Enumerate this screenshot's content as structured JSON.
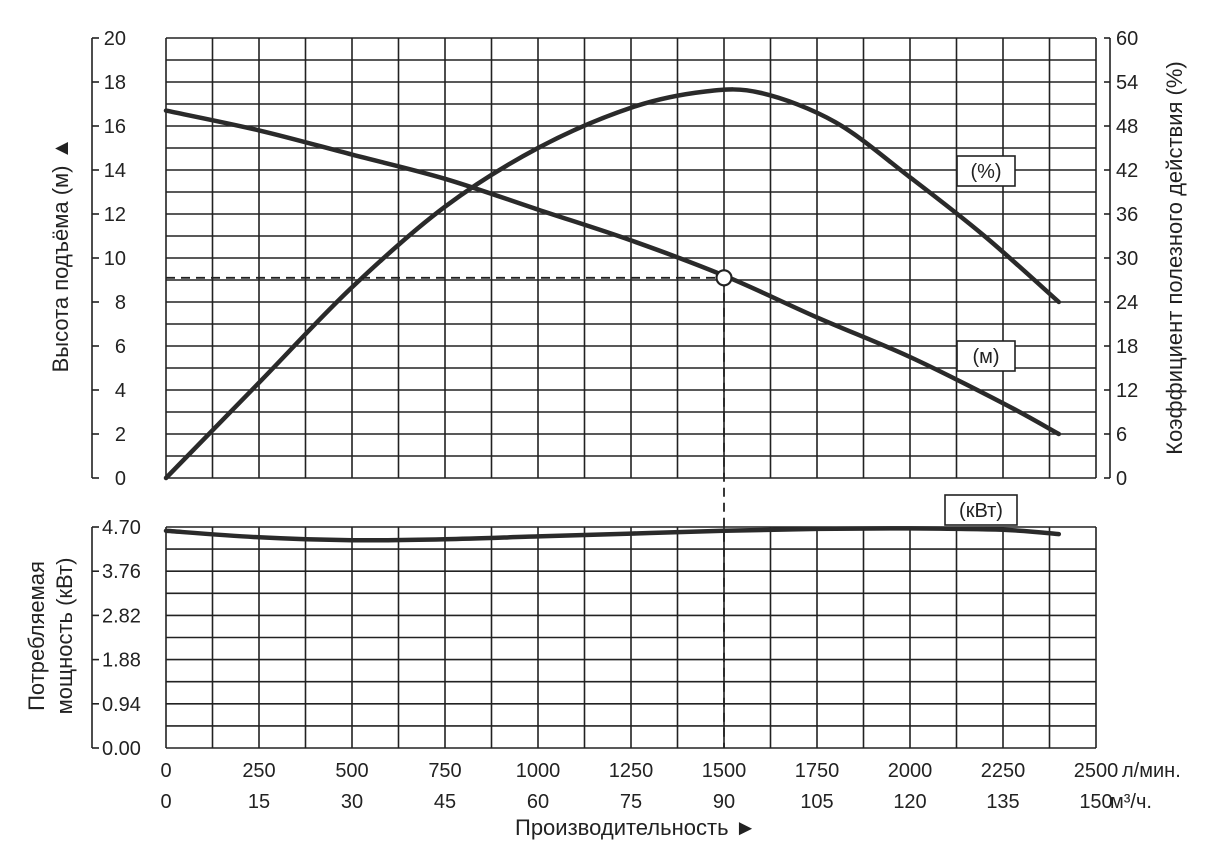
{
  "chart_data": {
    "type": "line",
    "x": {
      "label": "Производительность ►",
      "flow_lpm_ticks": [
        0,
        250,
        500,
        750,
        1000,
        1250,
        1500,
        1750,
        2000,
        2250,
        2500
      ],
      "flow_lpm_unit": "л/мин.",
      "flow_m3h_ticks": [
        0,
        15,
        30,
        45,
        60,
        75,
        90,
        105,
        120,
        135,
        150
      ],
      "flow_m3h_unit": "м³/ч.",
      "xlim": [
        0,
        2500
      ]
    },
    "head_axis": {
      "label": "Высота подъёма (м) ▲",
      "ticks": [
        0,
        2,
        4,
        6,
        8,
        10,
        12,
        14,
        16,
        18,
        20
      ],
      "ylim": [
        0,
        20
      ]
    },
    "efficiency_axis": {
      "label": "Коэффициент полезного действия (%)",
      "ticks": [
        0,
        6,
        12,
        18,
        24,
        30,
        36,
        42,
        48,
        54,
        60
      ],
      "ylim": [
        0,
        60
      ]
    },
    "power_axis": {
      "label_line1": "Потребляемая",
      "label_line2": "мощность (кВт)",
      "ticks": [
        "0.00",
        "0.94",
        "1.88",
        "2.82",
        "3.76",
        "4.70"
      ],
      "ylim": [
        0,
        4.7
      ]
    },
    "series": [
      {
        "name": "(м)",
        "axis": "head",
        "x": [
          0,
          250,
          500,
          750,
          1000,
          1250,
          1500,
          1750,
          2000,
          2250,
          2400
        ],
        "values": [
          16.7,
          15.8,
          14.7,
          13.6,
          12.2,
          10.8,
          9.2,
          7.3,
          5.5,
          3.4,
          2.0
        ]
      },
      {
        "name": "(%)",
        "axis": "efficiency",
        "x": [
          0,
          250,
          500,
          750,
          1000,
          1250,
          1450,
          1600,
          1800,
          2000,
          2200,
          2400
        ],
        "values": [
          0,
          13,
          26,
          37,
          45,
          50.5,
          52.7,
          52.5,
          48.5,
          41,
          33,
          24
        ]
      },
      {
        "name": "(кВт)",
        "axis": "power",
        "x": [
          0,
          250,
          500,
          750,
          1000,
          1250,
          1500,
          1750,
          2000,
          2250,
          2400
        ],
        "values": [
          4.62,
          4.48,
          4.42,
          4.44,
          4.5,
          4.56,
          4.62,
          4.66,
          4.67,
          4.64,
          4.55
        ]
      }
    ],
    "operating_point": {
      "flow_lpm": 1500,
      "head_m": 9.1
    }
  }
}
